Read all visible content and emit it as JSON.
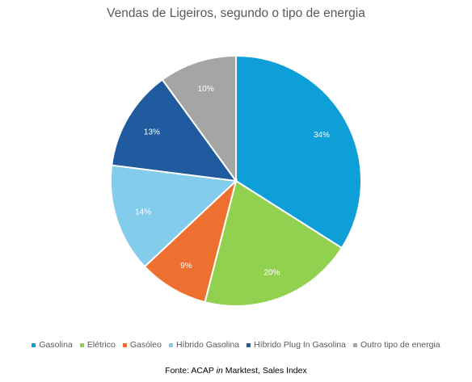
{
  "chart_data": {
    "type": "pie",
    "title": "Vendas de Ligeiros, segundo o tipo de energia",
    "slices": [
      {
        "label": "Gasolina",
        "value": 34,
        "value_label": "34%",
        "color": "#0e9ed8"
      },
      {
        "label": "Elétrico",
        "value": 20,
        "value_label": "20%",
        "color": "#92d050"
      },
      {
        "label": "Gasóleo",
        "value": 9,
        "value_label": "9%",
        "color": "#ed7031"
      },
      {
        "label": "Híbrido Gasolina",
        "value": 14,
        "value_label": "14%",
        "color": "#83ccec"
      },
      {
        "label": "Híbrido Plug In Gasolina",
        "value": 13,
        "value_label": "13%",
        "color": "#1f5b9e"
      },
      {
        "label": "Outro tipo de energia",
        "value": 10,
        "value_label": "10%",
        "color": "#a5a5a5"
      }
    ],
    "legend_position": "bottom"
  },
  "source": {
    "prefix": "Fonte: ACAP ",
    "italic": "in",
    "suffix": " Marktest, Sales Index"
  }
}
